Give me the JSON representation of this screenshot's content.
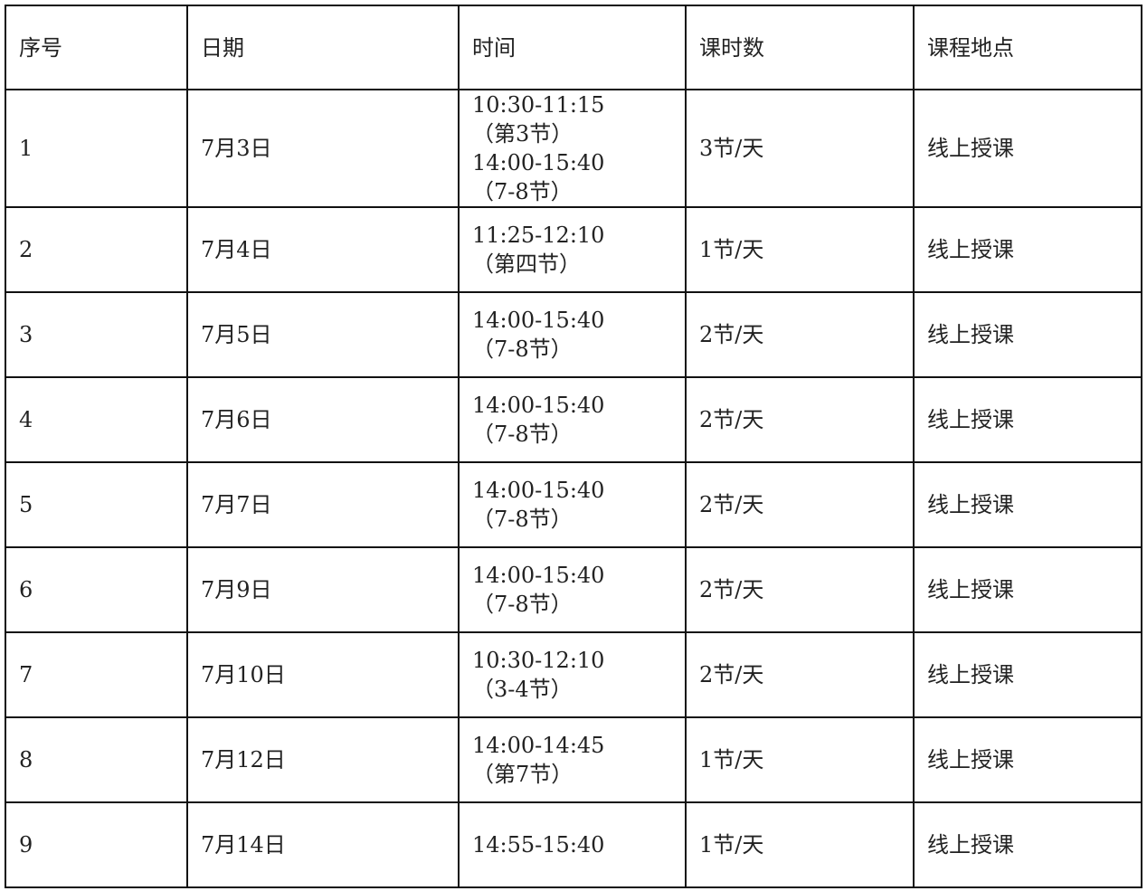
{
  "headers": [
    "序号",
    "日期",
    "时间",
    "课时数",
    "课程地点"
  ],
  "rows": [
    {
      "no": "1",
      "date": "7月3日",
      "time": [
        "10:30-11:15",
        "（第3节）",
        "14:00-15:40",
        "（7-8节）"
      ],
      "hours": "3节/天",
      "place": "线上授课"
    },
    {
      "no": "2",
      "date": "7月4日",
      "time": [
        "11:25-12:10",
        "（第四节）"
      ],
      "hours": "1节/天",
      "place": "线上授课"
    },
    {
      "no": "3",
      "date": "7月5日",
      "time": [
        "14:00-15:40",
        "（7-8节）"
      ],
      "hours": "2节/天",
      "place": "线上授课"
    },
    {
      "no": "4",
      "date": "7月6日",
      "time": [
        "14:00-15:40",
        "（7-8节）"
      ],
      "hours": "2节/天",
      "place": "线上授课"
    },
    {
      "no": "5",
      "date": "7月7日",
      "time": [
        "14:00-15:40",
        "（7-8节）"
      ],
      "hours": "2节/天",
      "place": "线上授课"
    },
    {
      "no": "6",
      "date": "7月9日",
      "time": [
        "14:00-15:40",
        "（7-8节）"
      ],
      "hours": "2节/天",
      "place": "线上授课"
    },
    {
      "no": "7",
      "date": "7月10日",
      "time": [
        "10:30-12:10",
        "（3-4节）"
      ],
      "hours": "2节/天",
      "place": "线上授课"
    },
    {
      "no": "8",
      "date": "7月12日",
      "time": [
        "14:00-14:45",
        "（第7节）"
      ],
      "hours": "1节/天",
      "place": "线上授课"
    },
    {
      "no": "9",
      "date": "7月14日",
      "time": [
        "14:55-15:40"
      ],
      "hours": "1节/天",
      "place": "线上授课"
    }
  ]
}
